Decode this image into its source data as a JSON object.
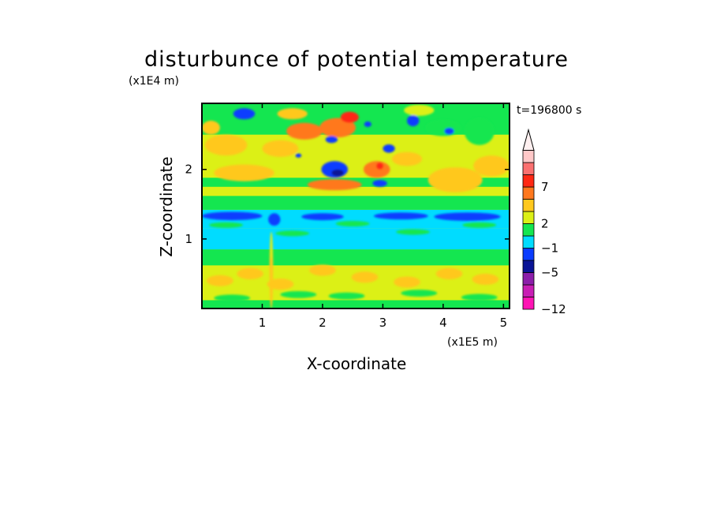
{
  "chart_data": {
    "type": "heatmap",
    "title": "disturbunce of potential temperature",
    "xlabel": "X-coordinate",
    "ylabel": "Z-coordinate",
    "x_unit": "(x1E5 m)",
    "y_unit": "(x1E4 m)",
    "time_label": "t=196800 s",
    "xlim": [
      0,
      5.1
    ],
    "ylim": [
      0,
      2.95
    ],
    "x_ticks": [
      "1",
      "2",
      "3",
      "4",
      "5"
    ],
    "y_ticks": [
      "1",
      "2"
    ],
    "colorbar": {
      "tick_labels": [
        "7",
        "2",
        "−1",
        "−5",
        "−12"
      ],
      "colors": [
        "#ff14b4",
        "#c81eb4",
        "#8c1eaa",
        "#0a1496",
        "#0a3cff",
        "#00dcff",
        "#14e650",
        "#dcf016",
        "#ffc81e",
        "#ff781e",
        "#ff2814",
        "#fa7070",
        "#ffc8c8"
      ],
      "extend": "max"
    }
  }
}
